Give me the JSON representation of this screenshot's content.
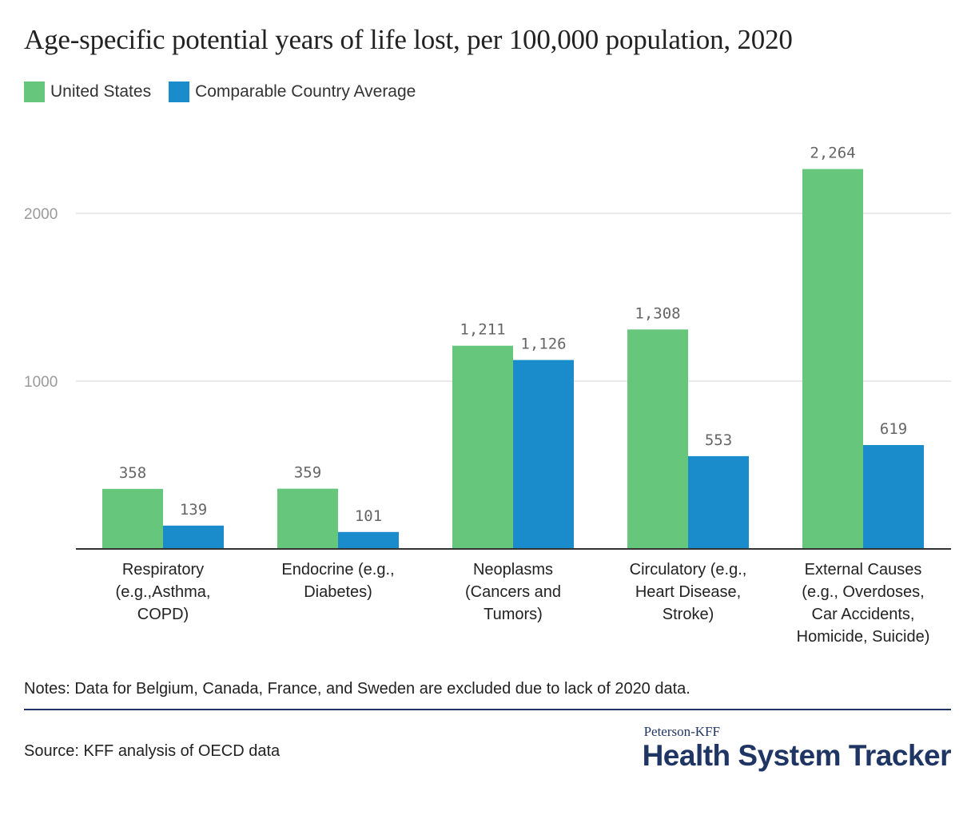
{
  "title": "Age-specific potential years of life lost, per 100,000 population, 2020",
  "legend": {
    "series_1": "United States",
    "series_2": "Comparable Country Average"
  },
  "colors": {
    "united_states": "#65c67c",
    "comparable": "#1a8ccc",
    "gridline": "#e3e3e3",
    "axis": "#333333",
    "tick_text": "#9a9a9a",
    "value_text": "#666666"
  },
  "chart_data": {
    "type": "bar",
    "title": "Age-specific potential years of life lost, per 100,000 population, 2020",
    "categories": [
      [
        "Respiratory",
        "(e.g.,Asthma,",
        "COPD)"
      ],
      [
        "Endocrine (e.g.,",
        "Diabetes)"
      ],
      [
        "Neoplasms",
        "(Cancers and",
        "Tumors)"
      ],
      [
        "Circulatory (e.g.,",
        "Heart Disease,",
        "Stroke)"
      ],
      [
        "External Causes",
        "(e.g., Overdoses,",
        "Car Accidents,",
        "Homicide, Suicide)"
      ]
    ],
    "series": [
      {
        "name": "United States",
        "values": [
          358,
          359,
          1211,
          1308,
          2264
        ],
        "labels": [
          "358",
          "359",
          "1,211",
          "1,308",
          "2,264"
        ]
      },
      {
        "name": "Comparable Country Average",
        "values": [
          139,
          101,
          1126,
          553,
          619
        ],
        "labels": [
          "139",
          "101",
          "1,126",
          "553",
          "619"
        ]
      }
    ],
    "yticks": [
      1000,
      2000
    ],
    "ylim": [
      0,
      2400
    ],
    "xlabel": "",
    "ylabel": "",
    "grid": true,
    "legend_position": "top-left"
  },
  "footer": {
    "notes": "Notes: Data for Belgium, Canada, France, and Sweden are excluded due to lack of 2020 data.",
    "source": "Source: KFF analysis of OECD data",
    "brand_small": "Peterson-KFF",
    "brand_big": "Health System Tracker"
  }
}
